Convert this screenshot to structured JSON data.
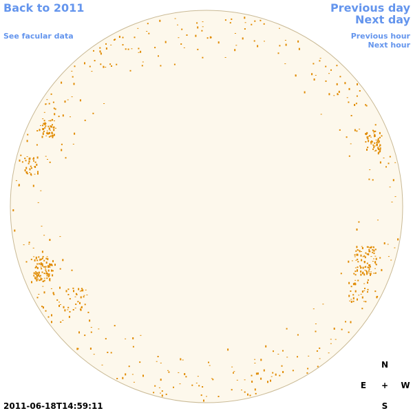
{
  "links": {
    "back": "Back to 2011",
    "facular": "See facular data",
    "previous_day": "Previous day",
    "next_day": "Next day",
    "previous_hour": "Previous hour",
    "next_hour": "Next hour"
  },
  "timestamp": "2011-06-18T14:59:11",
  "compass": {
    "north": "N",
    "east": "E",
    "center": "+",
    "west": "W",
    "south": "S"
  }
}
